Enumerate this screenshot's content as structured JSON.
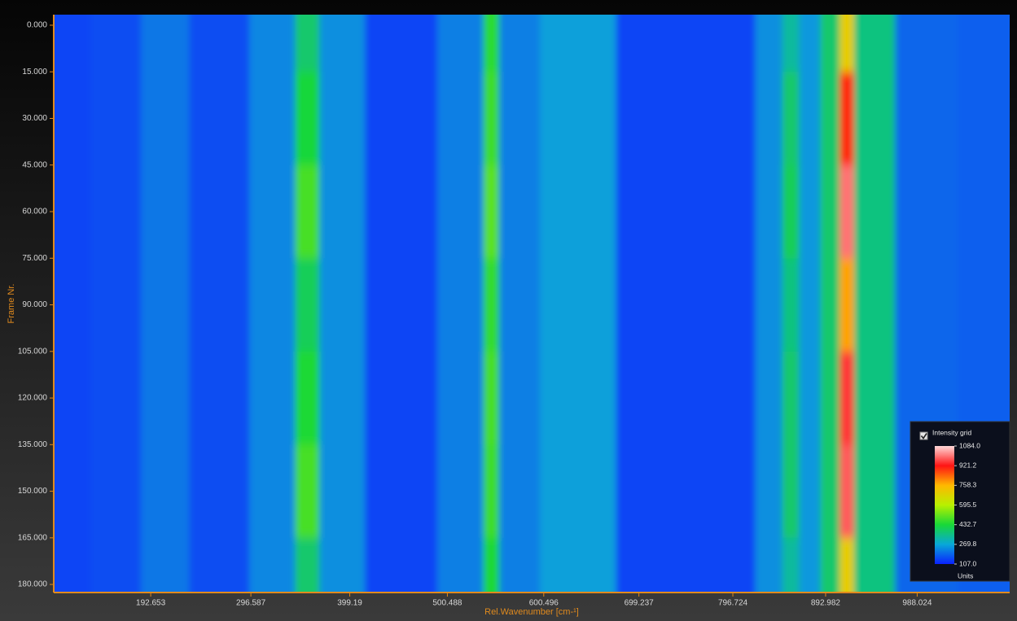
{
  "chart_data": {
    "type": "heatmap",
    "x_label": "Rel.Wavenumber [cm-¹]",
    "y_label": "Frame Nr.",
    "legend_title": "Intensity grid",
    "legend_unit": "Units",
    "legend_corner": "bottom-right",
    "x": [
      100,
      160,
      205,
      260,
      330,
      355,
      380,
      450,
      530,
      546,
      562,
      631,
      720,
      800,
      840,
      856,
      875,
      900,
      915,
      930,
      1000,
      1060
    ],
    "y": [
      0,
      30,
      60,
      90,
      120,
      150,
      180
    ],
    "z": [
      [
        150,
        160,
        210,
        160,
        230,
        380,
        240,
        150,
        220,
        450,
        220,
        260,
        150,
        150,
        240,
        330,
        250,
        380,
        700,
        360,
        190,
        180
      ],
      [
        150,
        160,
        210,
        160,
        230,
        430,
        240,
        150,
        220,
        470,
        220,
        260,
        150,
        150,
        240,
        380,
        250,
        380,
        900,
        360,
        190,
        180
      ],
      [
        150,
        160,
        210,
        160,
        230,
        480,
        240,
        150,
        220,
        500,
        220,
        260,
        150,
        150,
        240,
        400,
        250,
        380,
        1000,
        360,
        190,
        180
      ],
      [
        150,
        160,
        210,
        160,
        230,
        400,
        240,
        150,
        220,
        460,
        220,
        260,
        150,
        150,
        240,
        360,
        250,
        380,
        780,
        360,
        190,
        180
      ],
      [
        150,
        160,
        210,
        160,
        230,
        440,
        240,
        150,
        220,
        480,
        220,
        260,
        150,
        150,
        240,
        380,
        250,
        380,
        950,
        360,
        190,
        180
      ],
      [
        150,
        160,
        210,
        160,
        230,
        480,
        240,
        150,
        220,
        470,
        220,
        260,
        150,
        150,
        240,
        380,
        250,
        380,
        980,
        360,
        190,
        180
      ],
      [
        150,
        160,
        210,
        160,
        230,
        380,
        240,
        150,
        220,
        440,
        220,
        260,
        150,
        150,
        240,
        330,
        250,
        380,
        700,
        360,
        190,
        180
      ]
    ],
    "xlim": [
      92,
      1084
    ],
    "ylim": [
      -3.4,
      182.6
    ],
    "xticks": [
      192.653,
      296.587,
      399.19,
      500.488,
      600.496,
      699.237,
      796.724,
      892.982,
      988.024
    ],
    "yticks": [
      {
        "value": 0,
        "label": "0.000"
      },
      {
        "value": 15,
        "label": "15.000"
      },
      {
        "value": 30,
        "label": "30.000"
      },
      {
        "value": 45,
        "label": "45.000"
      },
      {
        "value": 60,
        "label": "60.000"
      },
      {
        "value": 75,
        "label": "75.000"
      },
      {
        "value": 90,
        "label": "90.000"
      },
      {
        "value": 105,
        "label": "105.000"
      },
      {
        "value": 120,
        "label": "120.000"
      },
      {
        "value": 135,
        "label": "135.000"
      },
      {
        "value": 150,
        "label": "150.000"
      },
      {
        "value": 165,
        "label": "165.000"
      },
      {
        "value": 180,
        "label": "180.000"
      }
    ],
    "zticks": [
      {
        "value": 107,
        "label": "107.0"
      },
      269.8,
      432.7,
      595.5,
      758.3,
      921.2,
      {
        "value": 1084,
        "label": "1084.0"
      }
    ],
    "zcolors": [
      "#0a22ff",
      "#08a8d8",
      "#18d838",
      "#b8f000",
      "#ffb800",
      "#ff1414",
      "#ffd8d8"
    ],
    "axis_color": "#e08a1e"
  }
}
